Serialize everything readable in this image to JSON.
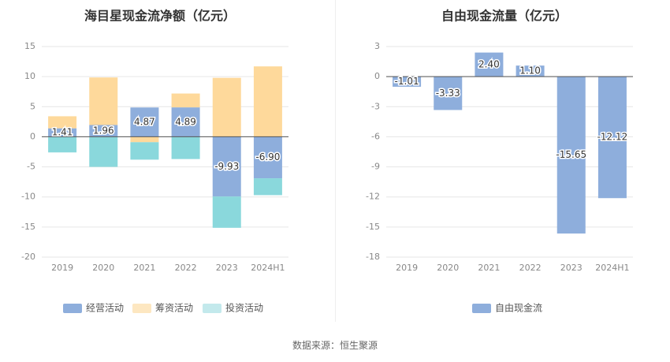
{
  "colors": {
    "operating": "#8eaedc",
    "financing": "#fed99b",
    "investing": "#8ad8dc",
    "fcf": "#8eaedc",
    "investing_legend": "#c3e9ec",
    "financing_legend": "#fde7c1",
    "grid": "#e6e6e6",
    "axis_text": "#888888",
    "title": "#333333"
  },
  "source": "数据来源：恒生聚源",
  "chart_data": [
    {
      "type": "bar",
      "stacked": true,
      "title": "海目星现金流净额（亿元）",
      "categories": [
        "2019",
        "2020",
        "2021",
        "2022",
        "2023",
        "2024H1"
      ],
      "ylim": [
        -20,
        15
      ],
      "yticks": [
        "15",
        "10",
        "5",
        "0",
        "-5",
        "-10",
        "-15",
        "-20"
      ],
      "ytick_values": [
        15,
        10,
        5,
        0,
        -5,
        -10,
        -15,
        -20
      ],
      "grid": true,
      "legend_position": "bottom",
      "series": [
        {
          "name": "经营活动",
          "values": [
            1.41,
            1.96,
            4.87,
            4.89,
            -9.93,
            -6.9
          ],
          "labels": [
            "1.41",
            "1.96",
            "4.87",
            "4.89",
            "-9.93",
            "-6.90"
          ]
        },
        {
          "name": "筹资活动",
          "values": [
            2.0,
            7.9,
            -0.9,
            2.3,
            9.8,
            11.7
          ]
        },
        {
          "name": "投资活动",
          "values": [
            -2.6,
            -5.0,
            -2.9,
            -3.7,
            -5.2,
            -2.8
          ]
        }
      ]
    },
    {
      "type": "bar",
      "title": "自由现金流量（亿元）",
      "categories": [
        "2019",
        "2020",
        "2021",
        "2022",
        "2023",
        "2024H1"
      ],
      "ylim": [
        -18,
        3
      ],
      "yticks": [
        "3",
        "0",
        "-3",
        "-6",
        "-9",
        "-12",
        "-15",
        "-18"
      ],
      "ytick_values": [
        3,
        0,
        -3,
        -6,
        -9,
        -12,
        -15,
        -18
      ],
      "grid": true,
      "legend_position": "bottom",
      "series": [
        {
          "name": "自由现金流",
          "values": [
            -1.01,
            -3.33,
            2.4,
            1.1,
            -15.65,
            -12.12
          ],
          "labels": [
            "-1.01",
            "-3.33",
            "2.40",
            "1.10",
            "-15.65",
            "-12.12"
          ]
        }
      ]
    }
  ]
}
